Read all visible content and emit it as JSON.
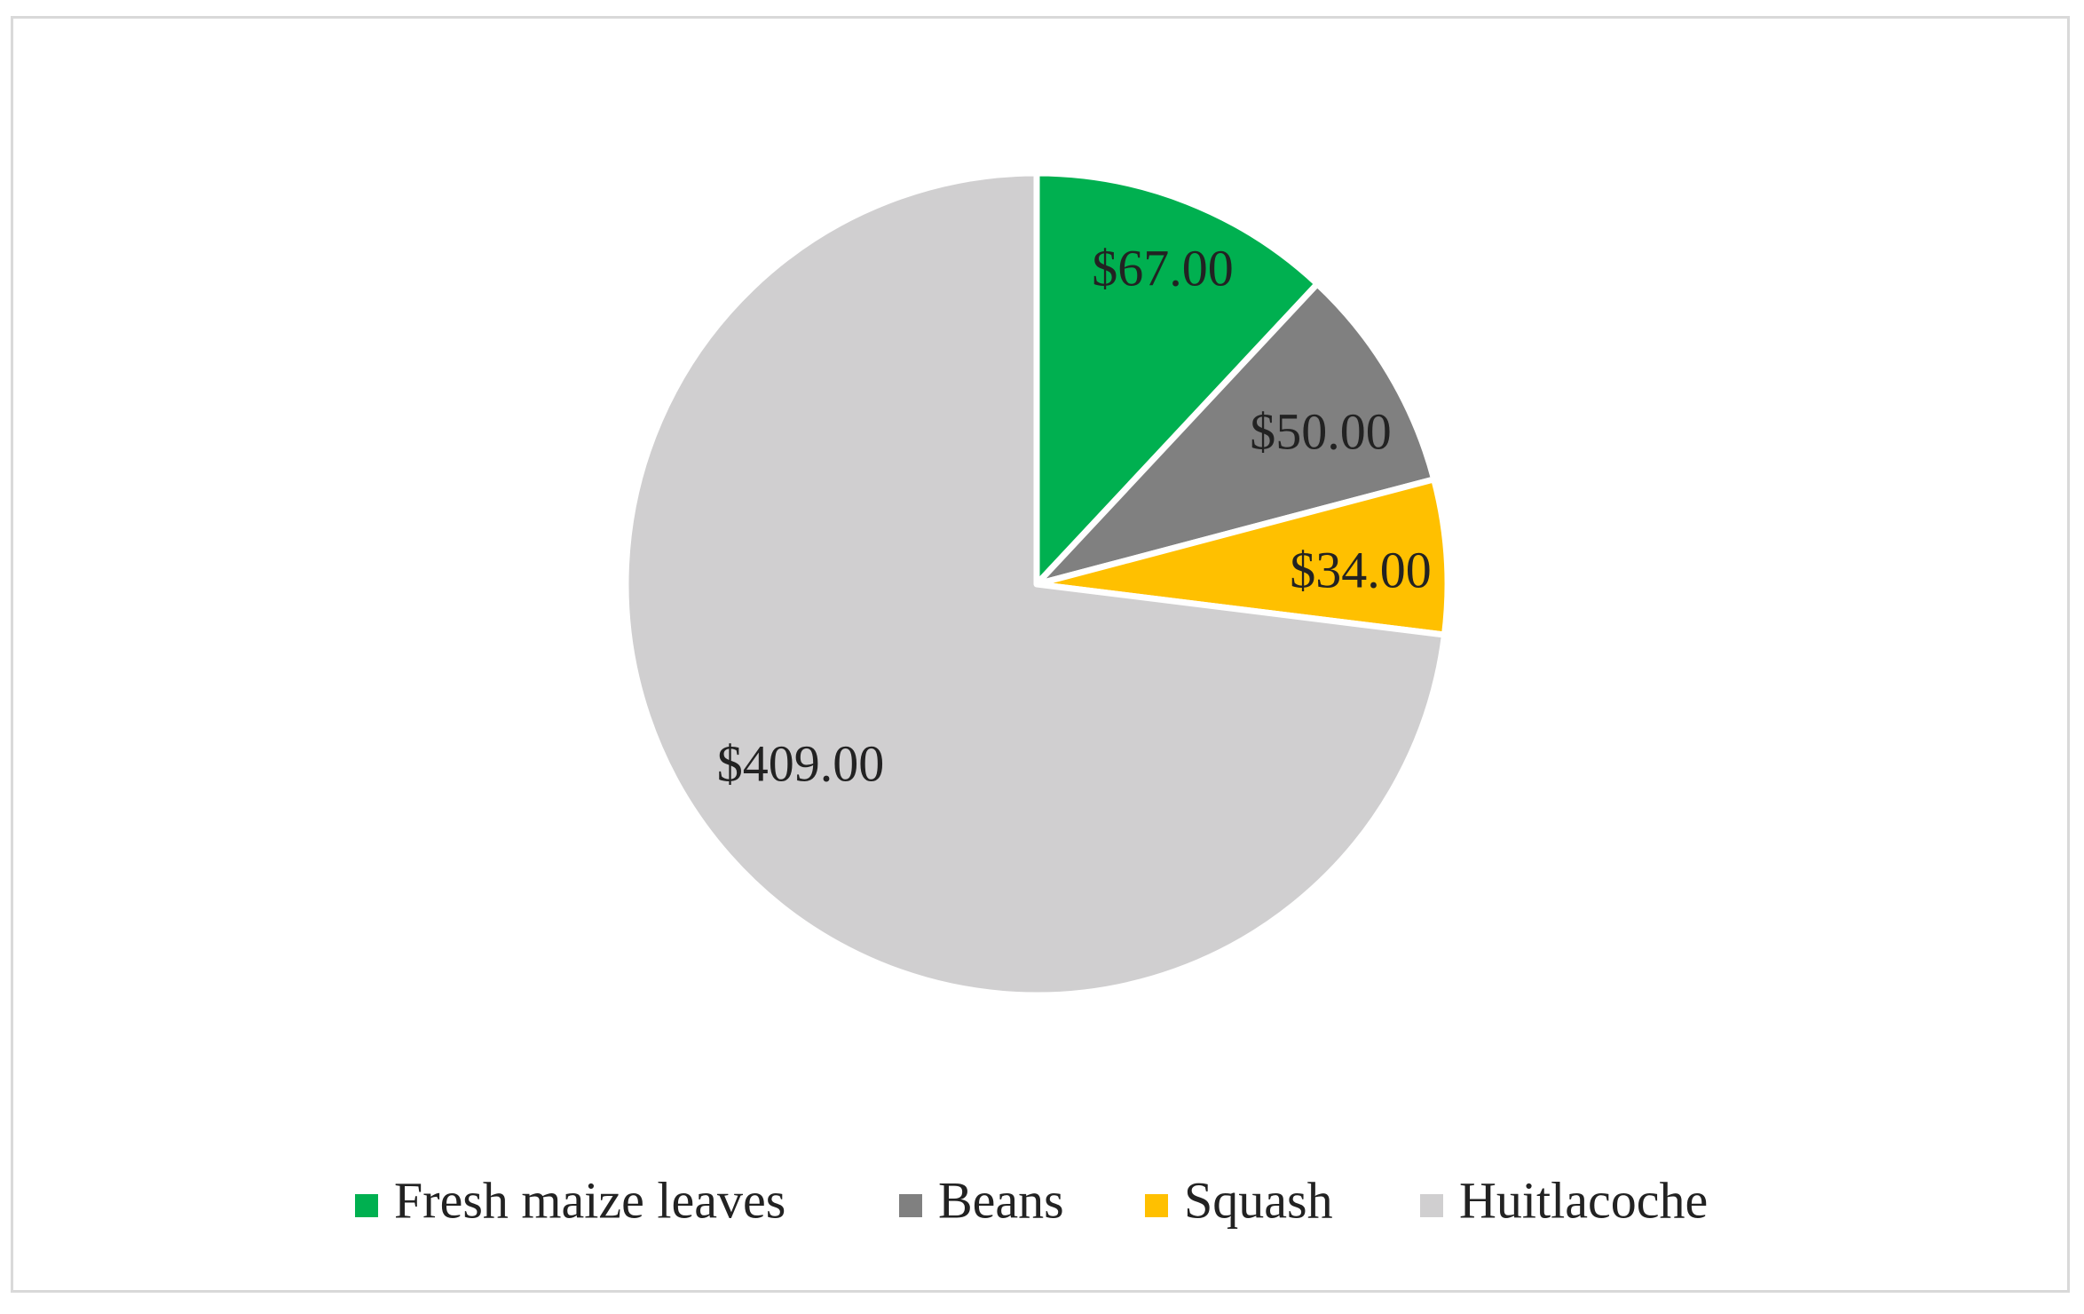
{
  "chart_data": {
    "type": "pie",
    "title": "",
    "categories": [
      "Fresh maize leaves",
      "Beans",
      "Squash",
      "Huitlacoche"
    ],
    "values": [
      67,
      50,
      34,
      409
    ],
    "data_labels": [
      "$67.00",
      "$50.00",
      "$34.00",
      "$409.00"
    ],
    "colors": [
      "#00b050",
      "#808080",
      "#ffc000",
      "#d0cfd0"
    ],
    "start_angle_deg": 0,
    "direction": "clockwise",
    "legend_position": "bottom",
    "legend": [
      {
        "label": "Fresh maize leaves",
        "color": "#00b050"
      },
      {
        "label": "Beans",
        "color": "#808080"
      },
      {
        "label": "Squash",
        "color": "#ffc000"
      },
      {
        "label": "Huitlacoche",
        "color": "#d0cfd0"
      }
    ]
  }
}
